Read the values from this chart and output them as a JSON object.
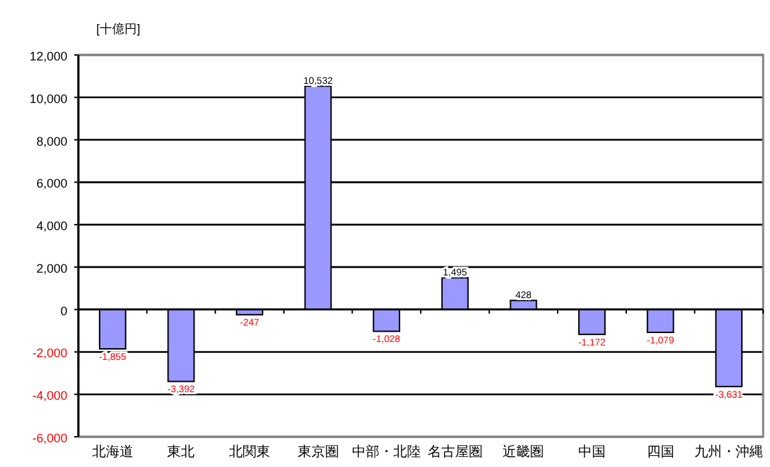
{
  "chart_data": {
    "type": "bar",
    "ylabel": "[十億円]",
    "categories": [
      "北海道",
      "東北",
      "北関東",
      "東京圏",
      "中部・北陸",
      "名古屋圏",
      "近畿圏",
      "中国",
      "四国",
      "九州・沖縄"
    ],
    "values": [
      -1855,
      -3392,
      -247,
      10532,
      -1028,
      1495,
      428,
      -1172,
      -1079,
      -3631
    ],
    "value_labels": [
      "-1,855",
      "-3,392",
      "-247",
      "10,532",
      "-1,028",
      "1,495",
      "428",
      "-1,172",
      "-1,079",
      "-3,631"
    ],
    "color": "#9999ff",
    "ylim": [
      -6000,
      12000
    ],
    "yticks": [
      {
        "value": -6000,
        "label": "-6,000"
      },
      {
        "value": -4000,
        "label": "-4,000"
      },
      {
        "value": -2000,
        "label": "-2,000"
      },
      0,
      {
        "value": 2000,
        "label": "2,000"
      },
      {
        "value": 4000,
        "label": "4,000"
      },
      {
        "value": 6000,
        "label": "6,000"
      },
      {
        "value": 8000,
        "label": "8,000"
      },
      {
        "value": 10000,
        "label": "10,000"
      },
      {
        "value": 12000,
        "label": "12,000"
      }
    ],
    "grid": "y"
  }
}
